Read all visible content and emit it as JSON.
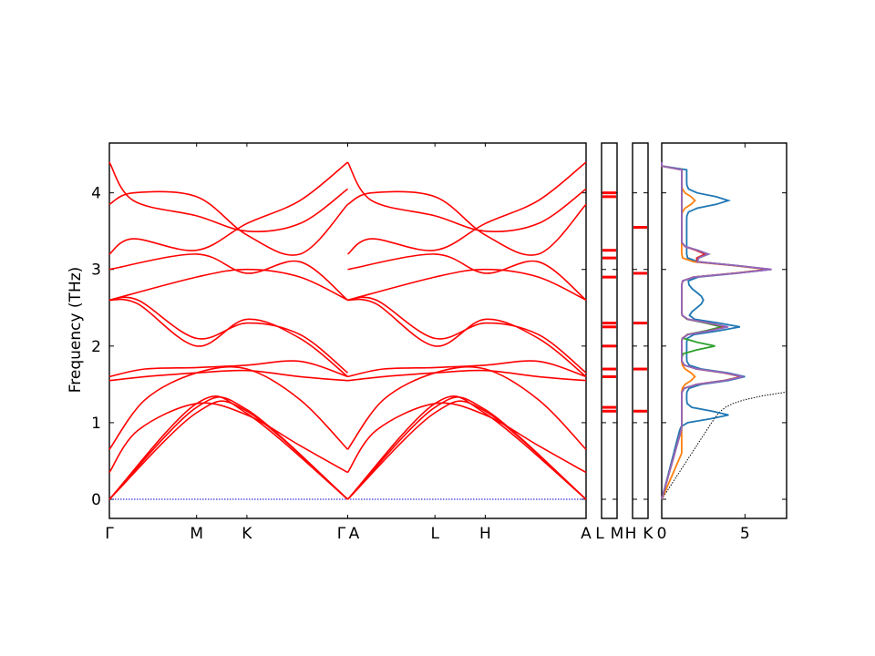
{
  "chart_data": {
    "type": "line",
    "ylabel": "Frequency (THz)",
    "ylim": [
      -0.25,
      4.65
    ],
    "yticks": [
      "0",
      "1",
      "2",
      "3",
      "4"
    ],
    "band_colors": {
      "bands": "#ff0000",
      "zero_line": "#0000cc"
    },
    "band_structure": {
      "segments": [
        {
          "name": "Γ-M-K-Γ",
          "xticks": [
            "Γ",
            "M",
            "K",
            "Γ"
          ],
          "xtick_pos": [
            0,
            0.366,
            0.577,
            1.0
          ]
        },
        {
          "name": "A-L-H-A",
          "xticks": [
            "A",
            "L",
            "H",
            "A"
          ],
          "xtick_pos": [
            0,
            0.366,
            0.577,
            1.0
          ]
        }
      ],
      "bands": [
        {
          "segment": 0,
          "x": [
            0,
            0.366,
            0.577,
            1.0
          ],
          "y": [
            0.0,
            1.13,
            1.15,
            0.0
          ]
        },
        {
          "segment": 0,
          "x": [
            0,
            0.366,
            0.577,
            1.0
          ],
          "y": [
            0.0,
            1.2,
            1.17,
            0.0
          ]
        },
        {
          "segment": 0,
          "x": [
            0,
            0.366,
            0.577,
            1.0
          ],
          "y": [
            0.0,
            1.25,
            1.12,
            0.0
          ]
        },
        {
          "segment": 0,
          "x": [
            0,
            0.12,
            0.366,
            0.577,
            0.8,
            1.0
          ],
          "y": [
            0.35,
            0.9,
            1.25,
            1.1,
            0.7,
            0.35
          ]
        },
        {
          "segment": 0,
          "x": [
            0,
            0.15,
            0.366,
            0.577,
            0.8,
            1.0
          ],
          "y": [
            0.65,
            1.3,
            1.65,
            1.7,
            1.3,
            0.65
          ]
        },
        {
          "segment": 0,
          "x": [
            0,
            0.15,
            0.366,
            0.577,
            0.8,
            1.0
          ],
          "y": [
            1.55,
            1.6,
            1.65,
            1.68,
            1.6,
            1.55
          ]
        },
        {
          "segment": 0,
          "x": [
            0,
            0.15,
            0.366,
            0.577,
            0.8,
            1.0
          ],
          "y": [
            1.6,
            1.7,
            1.72,
            1.75,
            1.8,
            1.6
          ]
        },
        {
          "segment": 0,
          "x": [
            0,
            0.12,
            0.366,
            0.577,
            0.8,
            1.0
          ],
          "y": [
            2.6,
            2.55,
            2.0,
            2.35,
            2.1,
            1.6
          ]
        },
        {
          "segment": 0,
          "x": [
            0,
            0.12,
            0.366,
            0.577,
            0.8,
            1.0
          ],
          "y": [
            2.6,
            2.6,
            2.1,
            2.3,
            2.15,
            1.65
          ]
        },
        {
          "segment": 0,
          "x": [
            0,
            0.366,
            0.577,
            0.8,
            1.0
          ],
          "y": [
            2.6,
            2.9,
            3.0,
            2.9,
            2.6
          ]
        },
        {
          "segment": 0,
          "x": [
            0,
            0.366,
            0.577,
            0.8,
            1.0
          ],
          "y": [
            3.0,
            3.2,
            2.95,
            3.1,
            2.6
          ]
        },
        {
          "segment": 0,
          "x": [
            0,
            0.1,
            0.366,
            0.577,
            0.8,
            1.0
          ],
          "y": [
            3.2,
            3.4,
            3.25,
            3.6,
            3.9,
            4.4
          ]
        },
        {
          "segment": 0,
          "x": [
            0,
            0.1,
            0.366,
            0.577,
            0.8,
            1.0
          ],
          "y": [
            3.85,
            4.0,
            3.95,
            3.45,
            3.2,
            3.85
          ]
        },
        {
          "segment": 0,
          "x": [
            0,
            0.1,
            0.366,
            0.577,
            0.8,
            1.0
          ],
          "y": [
            4.4,
            3.9,
            3.7,
            3.5,
            3.6,
            4.05
          ]
        }
      ]
    },
    "dos_panels": [
      {
        "name": "L-M panel",
        "xticks": [
          "L",
          "M"
        ]
      },
      {
        "name": "H-K panel",
        "xticks": [
          "H",
          "K"
        ]
      }
    ],
    "pdos": {
      "xticks": [
        "0",
        "5"
      ],
      "xlim": [
        0,
        7.5
      ],
      "series_colors": [
        "#1f77b4",
        "#ff7f0e",
        "#2ca02c",
        "#d62728",
        "#9467bd"
      ],
      "total_dos_color": "#000000"
    }
  }
}
